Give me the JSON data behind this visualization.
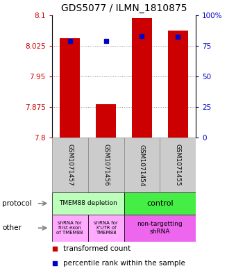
{
  "title": "GDS5077 / ILMN_1810875",
  "samples": [
    "GSM1071457",
    "GSM1071456",
    "GSM1071454",
    "GSM1071455"
  ],
  "y_min": 7.8,
  "y_max": 8.1,
  "y_ticks": [
    7.8,
    7.875,
    7.95,
    8.025,
    8.1
  ],
  "y_tick_labels": [
    "7.8",
    "7.875",
    "7.95",
    "8.025",
    "8.1"
  ],
  "y2_ticks": [
    0,
    25,
    50,
    75,
    100
  ],
  "y2_tick_labels": [
    "0",
    "25",
    "50",
    "75",
    "100%"
  ],
  "bar_values": [
    8.044,
    7.882,
    8.093,
    8.062
  ],
  "percentile_values": [
    79,
    79,
    83,
    82
  ],
  "bar_color": "#cc0000",
  "percentile_color": "#0000cc",
  "bar_width": 0.55,
  "protocol_labels": [
    "TMEM88 depletion",
    "control"
  ],
  "protocol_colors": [
    "#bbffbb",
    "#44ee44"
  ],
  "other_labels": [
    "shRNA for\nfirst exon\nof TMEM88",
    "shRNA for\n3'UTR of\nTMEM88",
    "non-targetting\nshRNA"
  ],
  "other_colors": [
    "#ffaaff",
    "#ffaaff",
    "#ee66ee"
  ],
  "background_color": "#ffffff",
  "grid_color": "#888888",
  "label_fontsize": 7.5,
  "title_fontsize": 10,
  "sample_bg_color": "#cccccc",
  "sample_border_color": "#888888"
}
